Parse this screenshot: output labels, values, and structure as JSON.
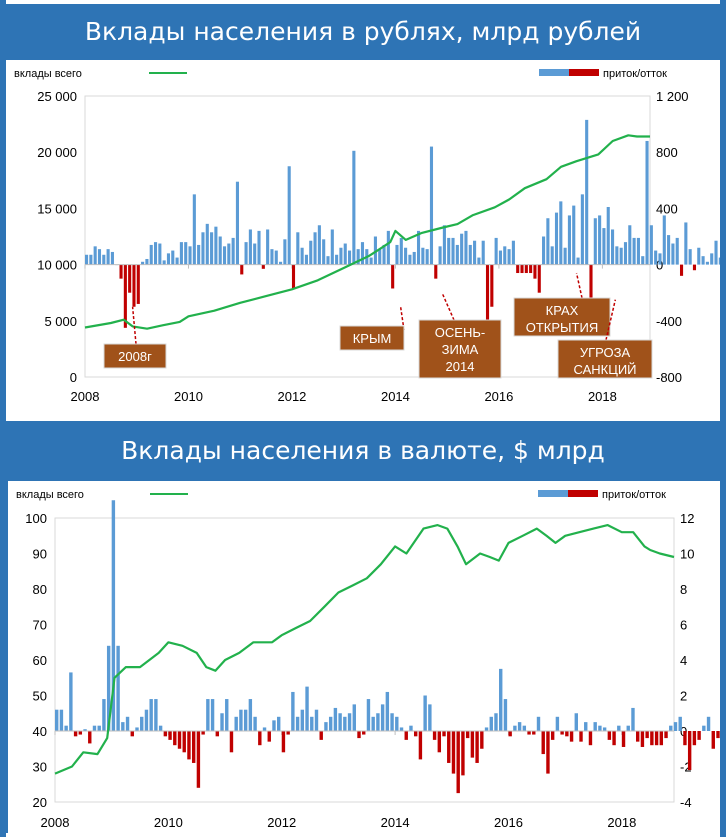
{
  "banners": {
    "top": "Вклады населения в рублях, млрд рублей",
    "bottom": "Вклады населения в валюте, $ млрд"
  },
  "legend": {
    "total_label": "вклады всего",
    "flow_label": "приток/отток"
  },
  "colors": {
    "banner": "#2e74b5",
    "line": "#22b14c",
    "inflow": "#5b9bd5",
    "outflow": "#c00000",
    "annotation_bg": "#a0521a"
  },
  "chart_data": [
    {
      "type": "bar",
      "id": "rub",
      "title": "Вклады населения в рублях, млрд рублей",
      "x_ticks": [
        "2008",
        "2010",
        "2012",
        "2014",
        "2016",
        "2018"
      ],
      "x_range": [
        2008.0,
        2018.92
      ],
      "left_axis": {
        "ticks": [
          "0",
          "5 000",
          "10 000",
          "15 000",
          "20 000",
          "25 000"
        ],
        "range": [
          0,
          25000
        ]
      },
      "right_axis": {
        "ticks": [
          "-800",
          "-400",
          "0",
          "400",
          "800",
          "1 200"
        ],
        "range": [
          -800,
          1200
        ]
      },
      "grid": false,
      "legend_position": "top",
      "series": [
        {
          "name": "вклады всего",
          "kind": "line",
          "axis": "left",
          "points": [
            [
              2008.0,
              4400
            ],
            [
              2008.5,
              4800
            ],
            [
              2008.75,
              5100
            ],
            [
              2008.92,
              4500
            ],
            [
              2009.2,
              4300
            ],
            [
              2009.5,
              4600
            ],
            [
              2009.83,
              4900
            ],
            [
              2010.0,
              5400
            ],
            [
              2010.5,
              5900
            ],
            [
              2011.0,
              6600
            ],
            [
              2011.5,
              7200
            ],
            [
              2012.0,
              7800
            ],
            [
              2012.5,
              8600
            ],
            [
              2013.0,
              9700
            ],
            [
              2013.5,
              10800
            ],
            [
              2013.9,
              12000
            ],
            [
              2014.0,
              13000
            ],
            [
              2014.2,
              12200
            ],
            [
              2014.5,
              12800
            ],
            [
              2014.92,
              13300
            ],
            [
              2015.2,
              13600
            ],
            [
              2015.5,
              14400
            ],
            [
              2015.92,
              15100
            ],
            [
              2016.2,
              15800
            ],
            [
              2016.5,
              16800
            ],
            [
              2016.92,
              17600
            ],
            [
              2017.2,
              18700
            ],
            [
              2017.5,
              19200
            ],
            [
              2017.92,
              19800
            ],
            [
              2018.2,
              21000
            ],
            [
              2018.5,
              21500
            ],
            [
              2018.67,
              21400
            ],
            [
              2018.92,
              21400
            ]
          ]
        },
        {
          "name": "приток/отток",
          "kind": "bar",
          "axis": "right",
          "start": 2008.0,
          "step": 0.08333,
          "values": [
            70,
            70,
            130,
            110,
            70,
            110,
            90,
            0,
            -100,
            -450,
            -200,
            -300,
            -280,
            20,
            40,
            140,
            160,
            150,
            30,
            80,
            100,
            50,
            160,
            160,
            130,
            500,
            140,
            230,
            290,
            230,
            270,
            200,
            130,
            150,
            190,
            590,
            -70,
            160,
            250,
            150,
            240,
            -30,
            250,
            110,
            100,
            20,
            180,
            700,
            -170,
            230,
            120,
            70,
            170,
            230,
            280,
            180,
            60,
            250,
            70,
            120,
            150,
            100,
            810,
            110,
            160,
            110,
            50,
            200,
            110,
            140,
            240,
            -170,
            140,
            190,
            120,
            70,
            90,
            240,
            120,
            110,
            840,
            -100,
            130,
            280,
            190,
            190,
            140,
            220,
            240,
            140,
            170,
            50,
            170,
            -650,
            -300,
            190,
            100,
            130,
            110,
            170,
            -60,
            -60,
            -60,
            -60,
            -100,
            -200,
            200,
            330,
            130,
            370,
            450,
            120,
            350,
            420,
            50,
            500,
            1030,
            -450,
            330,
            350,
            260,
            410,
            250,
            130,
            120,
            160,
            280,
            190,
            190,
            60,
            880,
            280,
            100,
            80,
            350,
            210,
            150,
            190,
            -80,
            300,
            110,
            -40,
            120,
            60,
            20,
            80,
            170,
            50,
            900,
            180,
            1050,
            -420,
            140,
            430,
            110,
            40,
            -100,
            -200,
            180
          ]
        }
      ],
      "annotations": [
        {
          "label": "2008г",
          "target": [
            2008.92,
            -300
          ]
        },
        {
          "label": "КРЫМ",
          "target": [
            2014.1,
            -300
          ]
        },
        {
          "label": "ОСЕНЬ-ЗИМА 2014",
          "target": [
            2014.9,
            -200
          ]
        },
        {
          "label": "КРАХ ОТКРЫТИЯ",
          "target": [
            2017.5,
            -60
          ]
        },
        {
          "label": "УГРОЗА САНКЦИЙ",
          "target": [
            2018.25,
            -250
          ]
        }
      ]
    },
    {
      "type": "bar",
      "id": "usd",
      "title": "Вклады населения в валюте, $ млрд",
      "x_ticks": [
        "2008",
        "2010",
        "2012",
        "2014",
        "2016",
        "2018"
      ],
      "x_range": [
        2008.0,
        2018.92
      ],
      "left_axis": {
        "ticks": [
          "20",
          "30",
          "40",
          "50",
          "60",
          "70",
          "80",
          "90",
          "100"
        ],
        "range": [
          20,
          100
        ]
      },
      "right_axis": {
        "ticks": [
          "-4",
          "-2",
          "0",
          "2",
          "4",
          "6",
          "8",
          "10",
          "12"
        ],
        "range": [
          -4,
          12
        ]
      },
      "grid": false,
      "legend_position": "top",
      "series": [
        {
          "name": "вклады всего",
          "kind": "line",
          "axis": "left",
          "points": [
            [
              2008.0,
              28
            ],
            [
              2008.3,
              30
            ],
            [
              2008.5,
              34
            ],
            [
              2008.75,
              33.5
            ],
            [
              2008.92,
              38
            ],
            [
              2009.05,
              55
            ],
            [
              2009.25,
              58
            ],
            [
              2009.5,
              58
            ],
            [
              2009.83,
              62
            ],
            [
              2010.0,
              65
            ],
            [
              2010.25,
              64
            ],
            [
              2010.5,
              62
            ],
            [
              2010.67,
              58
            ],
            [
              2010.83,
              57
            ],
            [
              2011.0,
              60
            ],
            [
              2011.25,
              62
            ],
            [
              2011.5,
              65
            ],
            [
              2011.83,
              65
            ],
            [
              2012.0,
              67
            ],
            [
              2012.25,
              69
            ],
            [
              2012.5,
              71
            ],
            [
              2012.75,
              75
            ],
            [
              2013.0,
              79
            ],
            [
              2013.25,
              81
            ],
            [
              2013.5,
              83
            ],
            [
              2013.75,
              87
            ],
            [
              2014.0,
              92
            ],
            [
              2014.2,
              90
            ],
            [
              2014.5,
              97
            ],
            [
              2014.75,
              98
            ],
            [
              2014.92,
              97
            ],
            [
              2015.1,
              92
            ],
            [
              2015.25,
              87
            ],
            [
              2015.5,
              90
            ],
            [
              2015.67,
              89
            ],
            [
              2015.83,
              88
            ],
            [
              2016.0,
              93
            ],
            [
              2016.25,
              95
            ],
            [
              2016.5,
              97
            ],
            [
              2016.67,
              95
            ],
            [
              2016.83,
              93
            ],
            [
              2017.0,
              95
            ],
            [
              2017.25,
              96
            ],
            [
              2017.5,
              97
            ],
            [
              2017.75,
              98
            ],
            [
              2018.0,
              96
            ],
            [
              2018.2,
              96
            ],
            [
              2018.4,
              92
            ],
            [
              2018.5,
              91
            ],
            [
              2018.67,
              90
            ],
            [
              2018.92,
              89
            ]
          ]
        },
        {
          "name": "приток/отток",
          "kind": "bar",
          "axis": "right",
          "start": 2008.0,
          "step": 0.08333,
          "values": [
            1.2,
            1.2,
            0.3,
            3.3,
            -0.3,
            -0.2,
            0.1,
            -0.7,
            0.3,
            0.3,
            1.8,
            4.8,
            13,
            4.8,
            0.5,
            0.8,
            -0.3,
            0.2,
            0.8,
            1.2,
            1.8,
            1.8,
            0.3,
            -0.3,
            -0.5,
            -0.8,
            -1.0,
            -1.2,
            -1.6,
            -1.8,
            -3.2,
            -0.2,
            1.8,
            1.8,
            -0.3,
            1.0,
            1.8,
            -1.2,
            0.8,
            1.2,
            1.2,
            1.8,
            0.8,
            -0.8,
            0.2,
            -0.6,
            0.6,
            0.8,
            -1.2,
            -0.2,
            2.2,
            0.8,
            1.2,
            2.5,
            0.8,
            1.2,
            -0.5,
            0.5,
            0.8,
            1.3,
            1.0,
            0.8,
            1.0,
            1.5,
            -0.4,
            -0.2,
            1.8,
            0.8,
            1.0,
            1.5,
            2.2,
            1.0,
            0.8,
            0.2,
            -0.5,
            0.3,
            -0.3,
            -1.6,
            2.0,
            1.5,
            -0.5,
            -1.2,
            -0.3,
            -1.8,
            -2.4,
            -3.5,
            -2.5,
            -0.4,
            -1.5,
            -1.8,
            -1.0,
            0.2,
            0.8,
            1.0,
            3.5,
            1.8,
            -0.3,
            0.3,
            0.5,
            0.3,
            -0.2,
            -0.2,
            0.8,
            -1.3,
            -2.4,
            -0.5,
            0.8,
            -0.2,
            -0.3,
            -0.6,
            1.0,
            -0.6,
            0.5,
            -0.8,
            0.5,
            0.3,
            0.2,
            -0.5,
            -0.8,
            0.3,
            -0.9,
            0.3,
            1.3,
            -0.6,
            -0.9,
            -0.4,
            -0.8,
            -0.8,
            -0.8,
            -0.4,
            0.3,
            0.5,
            0.8,
            -0.8,
            -2.2,
            -0.8,
            -0.5,
            0.3,
            0.8,
            -1.0,
            -0.4,
            -0.5
          ]
        }
      ]
    }
  ]
}
